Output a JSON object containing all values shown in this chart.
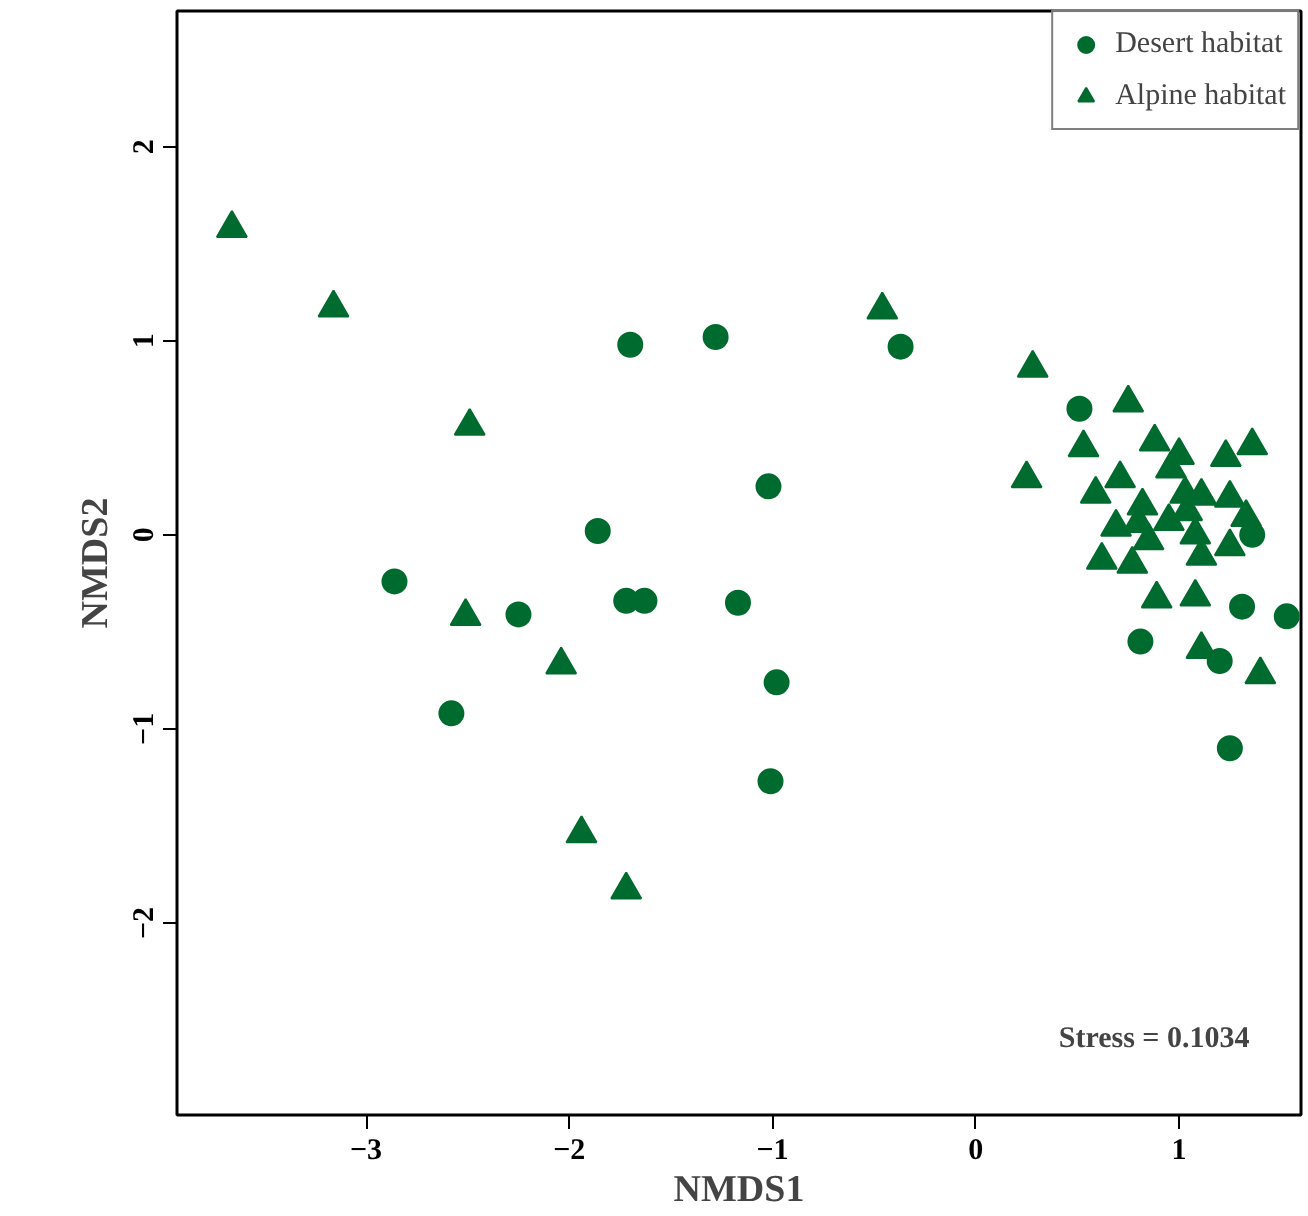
{
  "chart_data": {
    "type": "scatter",
    "xlabel": "NMDS1",
    "ylabel": "NMDS2",
    "xlim": [
      -3.93,
      1.6
    ],
    "ylim": [
      -2.99,
      2.7
    ],
    "xticks": [
      {
        "value": -3,
        "label": "−3"
      },
      {
        "value": -2,
        "label": "−2"
      },
      {
        "value": -1,
        "label": "−1"
      },
      0,
      1
    ],
    "yticks": [
      {
        "value": -2,
        "label": "−2"
      },
      {
        "value": -1,
        "label": "−1"
      },
      0,
      1,
      2
    ],
    "grid": false,
    "legend": "top right",
    "annotations": [
      "Stress = 0.1034"
    ],
    "series": [
      {
        "name": "Desert habitat",
        "color": "#006b2e",
        "marker": "circle",
        "x": [
          -2.86,
          -2.58,
          -2.25,
          -1.86,
          -1.7,
          -1.72,
          -1.63,
          -1.28,
          -1.17,
          -1.02,
          -0.98,
          -1.01,
          -0.37,
          0.51,
          1.36,
          1.31,
          1.53,
          0.81,
          1.2,
          1.25
        ],
        "values": [
          -0.24,
          -0.92,
          -0.41,
          0.02,
          0.98,
          -0.34,
          -0.34,
          1.02,
          -0.35,
          0.25,
          -0.76,
          -1.27,
          0.97,
          0.65,
          0.0,
          -0.37,
          -0.42,
          -0.55,
          -0.65,
          -1.1
        ]
      },
      {
        "name": "Alpine habitat",
        "color": "#006b2e",
        "marker": "triangle",
        "x": [
          -3.66,
          -3.16,
          -2.49,
          -2.51,
          -2.04,
          -1.94,
          -1.72,
          -0.46,
          0.28,
          0.75,
          0.53,
          0.25,
          0.88,
          1.0,
          1.23,
          1.36,
          0.96,
          0.71,
          0.59,
          0.82,
          1.03,
          1.11,
          1.25,
          0.69,
          0.8,
          0.95,
          1.04,
          1.33,
          1.08,
          0.85,
          0.62,
          0.77,
          1.11,
          1.25,
          0.89,
          1.08,
          1.11,
          1.4
        ],
        "values": [
          1.58,
          1.17,
          0.56,
          -0.42,
          -0.67,
          -1.54,
          -1.83,
          1.16,
          0.86,
          0.68,
          0.45,
          0.29,
          0.48,
          0.41,
          0.4,
          0.46,
          0.34,
          0.29,
          0.21,
          0.15,
          0.21,
          0.2,
          0.19,
          0.04,
          0.06,
          0.07,
          0.12,
          0.09,
          0.0,
          -0.03,
          -0.13,
          -0.15,
          -0.11,
          -0.06,
          -0.33,
          -0.32,
          -0.59,
          -0.72
        ]
      }
    ]
  }
}
